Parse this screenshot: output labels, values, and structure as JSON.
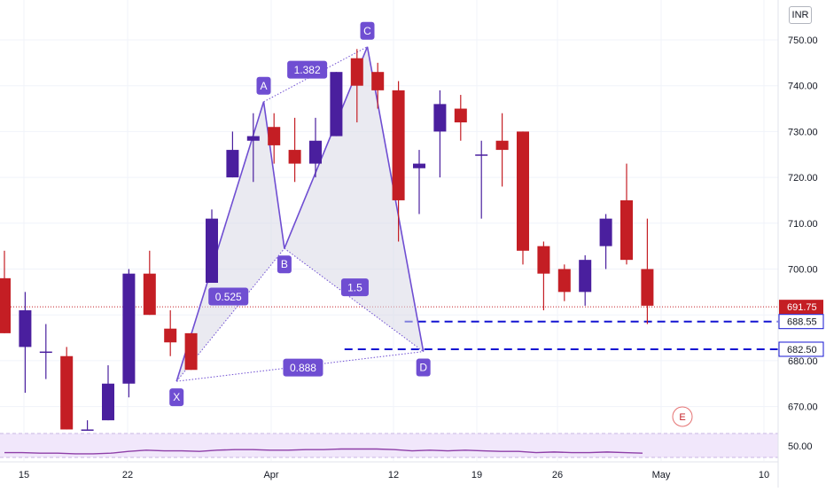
{
  "currency": "INR",
  "colors": {
    "up": "#4a1f9e",
    "down": "#c41e24",
    "pattern_line": "#6f4ed2",
    "pattern_fill": "#d9d9e6",
    "label_bg": "#6f4ed2",
    "grid": "#f0f3fa",
    "support": "#1414d2",
    "last_price": "#c41e24",
    "rsi_line": "#8e3fa8",
    "rsi_band": "#f1e7fb"
  },
  "chart_data": [
    {
      "type": "candlestick",
      "title": "",
      "y_ticks": [
        "750.00",
        "740.00",
        "730.00",
        "720.00",
        "710.00",
        "700.00",
        "680.00",
        "670.00"
      ],
      "x_ticks": [
        "15",
        "22",
        "Apr",
        "12",
        "19",
        "26",
        "May",
        "10"
      ],
      "ylim": [
        665,
        755
      ],
      "grid": true,
      "candles": [
        {
          "o": 698,
          "h": 704,
          "l": 686,
          "c": 686
        },
        {
          "o": 683,
          "h": 695,
          "l": 673,
          "c": 691
        },
        {
          "o": 682,
          "h": 688,
          "l": 676,
          "c": 682
        },
        {
          "o": 681,
          "h": 683,
          "l": 665,
          "c": 665
        },
        {
          "o": 665,
          "h": 667,
          "l": 665,
          "c": 665
        },
        {
          "o": 667,
          "h": 679,
          "l": 667,
          "c": 675
        },
        {
          "o": 675,
          "h": 700,
          "l": 672,
          "c": 699
        },
        {
          "o": 699,
          "h": 704,
          "l": 690,
          "c": 690
        },
        {
          "o": 687,
          "h": 691,
          "l": 681,
          "c": 684
        },
        {
          "o": 686,
          "h": 686,
          "l": 678,
          "c": 678
        },
        {
          "o": 697,
          "h": 713,
          "l": 697,
          "c": 711
        },
        {
          "o": 720,
          "h": 730,
          "l": 720,
          "c": 726
        },
        {
          "o": 728,
          "h": 734,
          "l": 719,
          "c": 729
        },
        {
          "o": 731,
          "h": 734,
          "l": 723,
          "c": 727
        },
        {
          "o": 726,
          "h": 733,
          "l": 719,
          "c": 723
        },
        {
          "o": 723,
          "h": 733,
          "l": 720,
          "c": 728
        },
        {
          "o": 729,
          "h": 743,
          "l": 729,
          "c": 743
        },
        {
          "o": 746,
          "h": 748,
          "l": 732,
          "c": 740
        },
        {
          "o": 743,
          "h": 745,
          "l": 735,
          "c": 739
        },
        {
          "o": 739,
          "h": 741,
          "l": 706,
          "c": 715
        },
        {
          "o": 722,
          "h": 726,
          "l": 712,
          "c": 723
        },
        {
          "o": 730,
          "h": 739,
          "l": 720,
          "c": 736
        },
        {
          "o": 735,
          "h": 738,
          "l": 728,
          "c": 732
        },
        {
          "o": 725,
          "h": 728,
          "l": 711,
          "c": 725
        },
        {
          "o": 728,
          "h": 734,
          "l": 718,
          "c": 726
        },
        {
          "o": 730,
          "h": 730,
          "l": 701,
          "c": 704
        },
        {
          "o": 705,
          "h": 706,
          "l": 691,
          "c": 699
        },
        {
          "o": 700,
          "h": 701,
          "l": 693,
          "c": 695
        },
        {
          "o": 695,
          "h": 703,
          "l": 692,
          "c": 702
        },
        {
          "o": 705,
          "h": 712,
          "l": 700,
          "c": 711
        },
        {
          "o": 715,
          "h": 723,
          "l": 701,
          "c": 702
        },
        {
          "o": 700,
          "h": 711,
          "l": 688,
          "c": 692
        }
      ],
      "harmonic_points": [
        {
          "label": "X",
          "i": 8.3,
          "y": 675.5
        },
        {
          "label": "A",
          "i": 12.5,
          "y": 736.5
        },
        {
          "label": "B",
          "i": 13.5,
          "y": 704.5
        },
        {
          "label": "C",
          "i": 17.5,
          "y": 748.5
        },
        {
          "label": "D",
          "i": 20.2,
          "y": 682
        }
      ],
      "ratio_labels": [
        {
          "text": "1.382",
          "i": 14.6,
          "y": 743.5
        },
        {
          "text": "0.525",
          "i": 10.8,
          "y": 694
        },
        {
          "text": "1.5",
          "i": 16.9,
          "y": 696
        },
        {
          "text": "0.888",
          "i": 14.4,
          "y": 678.5
        }
      ],
      "levels": [
        {
          "value": "691.75",
          "style": "dotted",
          "kind": "last"
        },
        {
          "value": "688.55",
          "style": "dashed",
          "kind": "support",
          "from_i": 19.3
        },
        {
          "value": "682.50",
          "style": "dashed",
          "kind": "support",
          "from_i": 16.4
        }
      ],
      "event_marker": "E",
      "indicator": {
        "type": "line",
        "tick": "50.00",
        "ylim": [
          30,
          70
        ],
        "values": [
          44,
          44,
          43,
          43,
          42,
          42,
          43,
          46,
          48,
          47,
          47,
          46,
          48,
          49,
          49,
          48,
          48,
          49,
          49,
          50,
          50,
          50,
          49,
          47,
          48,
          47,
          48,
          47,
          46,
          46,
          44,
          45,
          44,
          44,
          45,
          44,
          43
        ]
      }
    }
  ]
}
